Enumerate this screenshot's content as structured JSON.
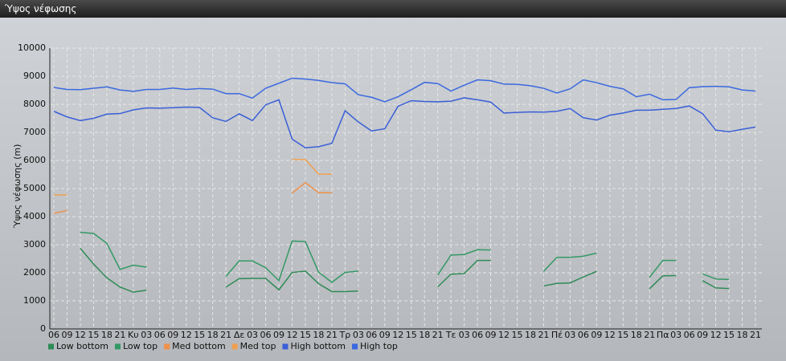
{
  "panel_title": "Ύψος νέφωσης",
  "chart_data": {
    "type": "line",
    "y_label": "Ύψος νέφωσης (m)",
    "grid": true,
    "legend": "bottom",
    "categories": [
      "06",
      "09",
      "12",
      "15",
      "18",
      "21",
      "Κυ",
      "03",
      "06",
      "09",
      "12",
      "15",
      "18",
      "21",
      "Δε",
      "03",
      "06",
      "09",
      "12",
      "15",
      "18",
      "21",
      "Τρ",
      "03",
      "06",
      "09",
      "12",
      "15",
      "18",
      "21",
      "Τε",
      "03",
      "06",
      "09",
      "12",
      "15",
      "18",
      "21",
      "Πέ",
      "03",
      "06",
      "09",
      "12",
      "15",
      "18",
      "21",
      "Πα",
      "03",
      "06",
      "09",
      "12",
      "15",
      "18",
      "21"
    ],
    "ylim": [
      0,
      10000
    ],
    "yticks": [
      0,
      1000,
      2000,
      3000,
      4000,
      5000,
      6000,
      7000,
      8000,
      9000,
      10000
    ],
    "series": [
      {
        "name": "Low bottom",
        "color": "#2e8b57",
        "values": [
          null,
          null,
          2870,
          2310,
          1820,
          1490,
          1310,
          1380,
          null,
          null,
          null,
          null,
          null,
          1490,
          1790,
          1800,
          1800,
          1390,
          2010,
          2060,
          1610,
          1330,
          1330,
          1350,
          null,
          null,
          null,
          null,
          null,
          1500,
          1950,
          1970,
          2440,
          2440,
          null,
          null,
          null,
          1530,
          1620,
          1640,
          1850,
          2050,
          null,
          null,
          null,
          1430,
          1890,
          1900,
          null,
          1720,
          1460,
          1440,
          null,
          null
        ]
      },
      {
        "name": "Low top",
        "color": "#339966",
        "values": [
          null,
          null,
          3440,
          3400,
          3050,
          2120,
          2270,
          2200,
          null,
          null,
          null,
          null,
          null,
          1870,
          2420,
          2420,
          2180,
          1720,
          3130,
          3110,
          2020,
          1660,
          2010,
          2060,
          null,
          null,
          null,
          null,
          null,
          1920,
          2630,
          2650,
          2820,
          2810,
          null,
          null,
          null,
          2050,
          2550,
          2550,
          2590,
          2700,
          null,
          null,
          null,
          1840,
          2440,
          2440,
          null,
          1960,
          1780,
          1760,
          null,
          null
        ]
      },
      {
        "name": "Med bottom",
        "color": "#f09048",
        "values": [
          4120,
          4220,
          null,
          null,
          null,
          null,
          null,
          null,
          null,
          null,
          null,
          null,
          null,
          null,
          null,
          null,
          null,
          null,
          4840,
          5210,
          4850,
          4850,
          null,
          null,
          null,
          null,
          null,
          null,
          null,
          null,
          null,
          null,
          null,
          null,
          null,
          null,
          null,
          null,
          null,
          null,
          null,
          null,
          null,
          null,
          null,
          null,
          null,
          null,
          null,
          null,
          null,
          null,
          null,
          null
        ]
      },
      {
        "name": "Med top",
        "color": "#f0a050",
        "values": [
          4770,
          4770,
          null,
          null,
          null,
          null,
          null,
          null,
          null,
          null,
          null,
          null,
          null,
          null,
          null,
          null,
          null,
          null,
          6040,
          6030,
          5510,
          5510,
          null,
          null,
          null,
          null,
          null,
          null,
          null,
          null,
          null,
          null,
          null,
          null,
          null,
          null,
          null,
          null,
          null,
          null,
          null,
          null,
          null,
          null,
          null,
          null,
          null,
          null,
          null,
          null,
          null,
          null,
          null,
          null
        ]
      },
      {
        "name": "High bottom",
        "color": "#3a5fd8",
        "values": [
          7750,
          7550,
          7420,
          7500,
          7650,
          7670,
          7800,
          7870,
          7860,
          7880,
          7900,
          7890,
          7520,
          7390,
          7660,
          7420,
          7980,
          8160,
          6760,
          6450,
          6490,
          6610,
          7770,
          7370,
          7050,
          7130,
          7930,
          8130,
          8100,
          8090,
          8110,
          8230,
          8160,
          8080,
          7690,
          7710,
          7730,
          7720,
          7750,
          7850,
          7520,
          7440,
          7610,
          7690,
          7790,
          7790,
          7820,
          7850,
          7940,
          7670,
          7080,
          7020,
          7110,
          7190
        ]
      },
      {
        "name": "High top",
        "color": "#3a68e0",
        "values": [
          8600,
          8530,
          8520,
          8570,
          8620,
          8510,
          8460,
          8530,
          8530,
          8580,
          8530,
          8560,
          8540,
          8380,
          8380,
          8220,
          8570,
          8750,
          8930,
          8900,
          8850,
          8770,
          8730,
          8340,
          8250,
          8090,
          8270,
          8520,
          8780,
          8740,
          8470,
          8680,
          8870,
          8840,
          8720,
          8710,
          8660,
          8570,
          8400,
          8550,
          8870,
          8770,
          8640,
          8550,
          8270,
          8360,
          8160,
          8170,
          8590,
          8630,
          8640,
          8620,
          8510,
          8470
        ]
      }
    ]
  }
}
